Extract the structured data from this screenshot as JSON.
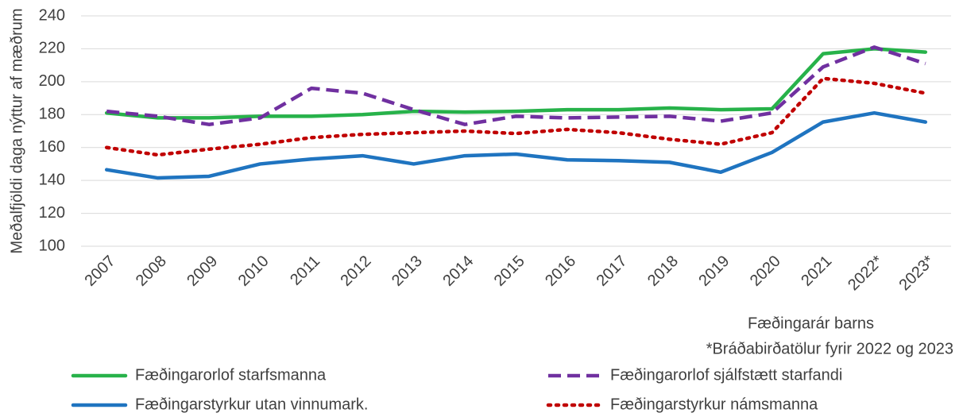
{
  "chart_data": {
    "type": "line",
    "y_label": "Meðalfjöldi daga nýttur af mæðrum",
    "x_label": "Fæðingarár barns",
    "note": "*Bráðabirðatölur fyrir 2022 og 2023",
    "categories": [
      "2007",
      "2008",
      "2009",
      "2010",
      "2011",
      "2012",
      "2013",
      "2014",
      "2015",
      "2016",
      "2017",
      "2018",
      "2019",
      "2020",
      "2021",
      "2022*",
      "2023*"
    ],
    "ylim": [
      100,
      240
    ],
    "yticks": [
      100,
      120,
      140,
      160,
      180,
      200,
      220,
      240
    ],
    "grid": true,
    "legend": "bottom",
    "series": [
      {
        "name": "Fæðingarorlof starfsmanna",
        "color": "#27b24a",
        "dash": "solid",
        "values": [
          181,
          178,
          178,
          179,
          179,
          180,
          182,
          181.5,
          182,
          183,
          183,
          184,
          183,
          183.5,
          217,
          220,
          218
        ]
      },
      {
        "name": "Fæðingarorlof sjálfstætt starfandi",
        "color": "#7030a0",
        "dash": "dashed",
        "values": [
          182,
          179,
          174,
          178,
          196,
          193,
          183,
          174,
          179,
          178,
          178.5,
          179,
          176,
          181,
          209,
          221,
          211
        ]
      },
      {
        "name": "Fæðingarstyrkur utan vinnumark.",
        "color": "#1f74c0",
        "dash": "solid",
        "values": [
          146.5,
          141.5,
          142.5,
          150,
          153,
          155,
          150,
          155,
          156,
          152.5,
          152,
          151,
          145,
          157,
          175.5,
          181,
          175.5
        ]
      },
      {
        "name": "Fæðingarstyrkur námsmanna",
        "color": "#c00000",
        "dash": "dotted",
        "values": [
          160,
          155.5,
          159,
          162,
          166,
          168,
          169,
          170,
          168.5,
          171,
          169,
          165,
          162,
          169,
          202,
          199,
          193
        ]
      }
    ]
  }
}
